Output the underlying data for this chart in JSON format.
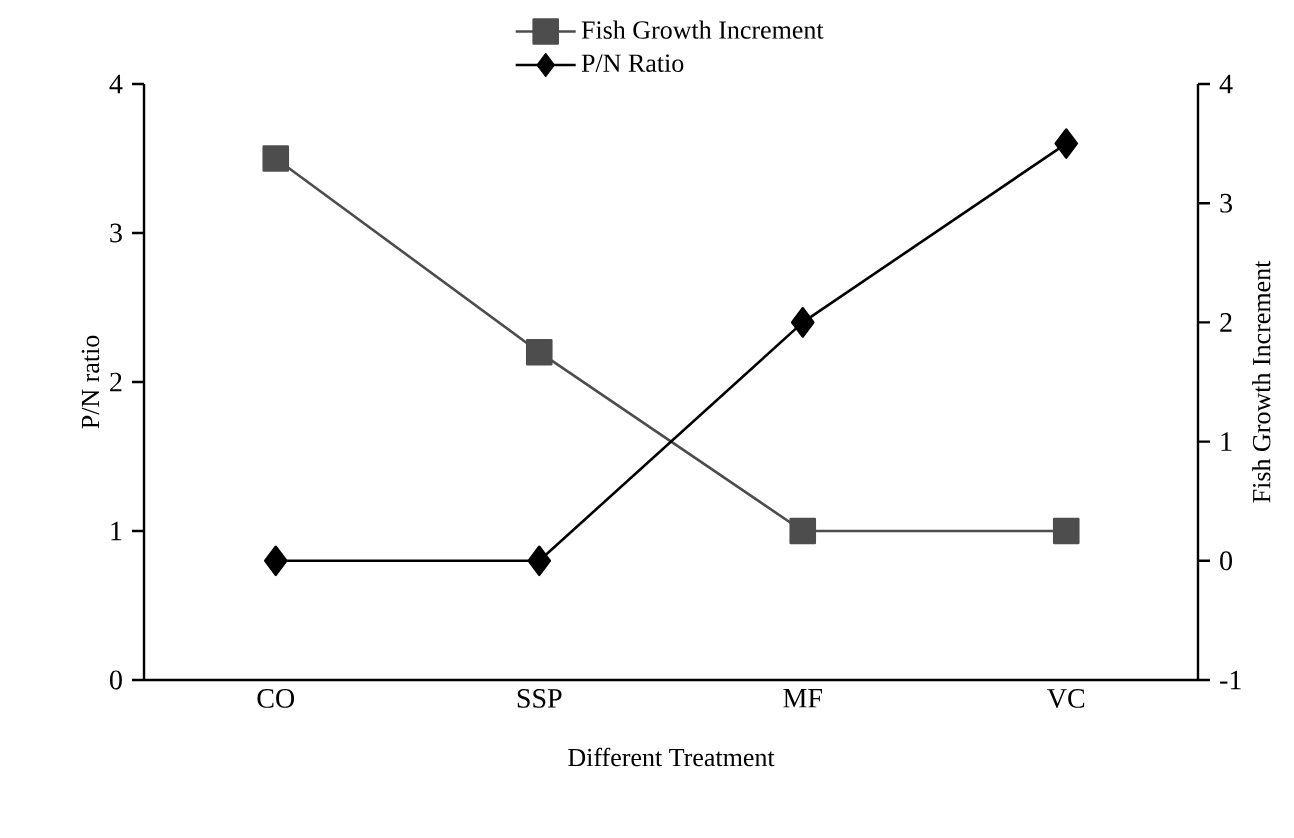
{
  "chart_data": {
    "type": "line",
    "xlabel": "Different Treatment",
    "ylabel": "P/N ratio",
    "y2label": "Fish Growth Increment",
    "categories": [
      "CO",
      "SSP",
      "MF",
      "VC"
    ],
    "series": [
      {
        "name": "Fish Growth Increment",
        "color": "#4d4d4d",
        "marker": "square",
        "values": [
          3.5,
          2.2,
          1.0,
          1.0
        ]
      },
      {
        "name": "P/N Ratio",
        "color": "#000000",
        "marker": "diamond",
        "axis": "y2",
        "values": [
          0,
          0,
          2.0,
          3.5
        ]
      }
    ],
    "ylim": [
      0,
      4
    ],
    "yticks": [
      0,
      1,
      2,
      3,
      4
    ],
    "y2lim": [
      -1,
      4
    ],
    "y2ticks": [
      -1,
      0,
      1,
      2,
      3,
      4
    ],
    "grid": false,
    "legend": "top",
    "line_style": "solid"
  }
}
